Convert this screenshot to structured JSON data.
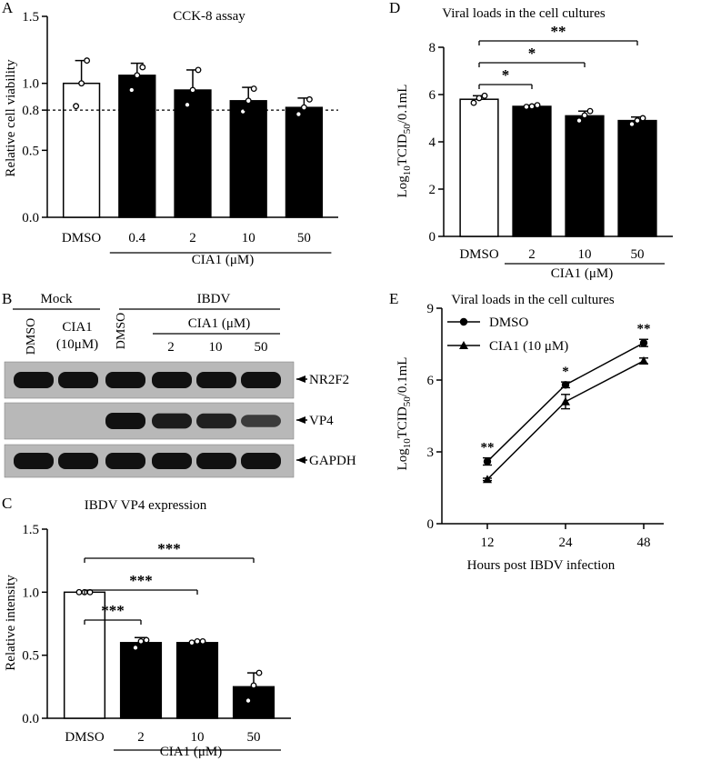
{
  "panels": {
    "A": {
      "letter": "A",
      "title": "CCK-8 assay",
      "ylabel": "Relative cell viability",
      "yticks": [
        "0.0",
        "0.5",
        "0.8",
        "1.0",
        "1.5"
      ],
      "ytick_values": [
        0.0,
        0.5,
        0.8,
        1.0,
        1.5
      ],
      "group_label": "CIA1 (μM)",
      "threshold": 0.8
    },
    "B": {
      "letter": "B",
      "mock_label": "Mock",
      "ibdv_label": "IBDV",
      "lane_dmso_1": "DMSO",
      "lane_dmso_2": "DMSO",
      "cia1_mock_line1": "CIA1",
      "cia1_mock_line2": "(10μM)",
      "cia1_ibdv": "CIA1 (μM)",
      "doses": [
        "2",
        "10",
        "50"
      ],
      "band_labels": [
        "NR2F2",
        "VP4",
        "GAPDH"
      ],
      "band_intensity": {
        "NR2F2": [
          1,
          1,
          1,
          1,
          1
        ],
        "VP4": [
          0,
          0,
          1,
          0.8,
          0.45
        ],
        "GAPDH": [
          1,
          1,
          1,
          1,
          1
        ]
      }
    },
    "C": {
      "letter": "C",
      "title": "IBDV VP4 expression",
      "ylabel": "Relative intensity",
      "yticks": [
        "0.0",
        "0.5",
        "1.0",
        "1.5"
      ],
      "ytick_values": [
        0.0,
        0.5,
        1.0,
        1.5
      ],
      "group_label": "CIA1 (μM)",
      "sig": [
        "***",
        "***",
        "***"
      ]
    },
    "D": {
      "letter": "D",
      "title": "Viral loads in the cell cultures",
      "ylabel_main": "Log",
      "ylabel_sub": "10",
      "ylabel_mid": "TCID",
      "ylabel_sub2": "50",
      "ylabel_tail": "/0.1mL",
      "yticks": [
        "0",
        "2",
        "4",
        "6",
        "8"
      ],
      "ytick_values": [
        0,
        2,
        4,
        6,
        8
      ],
      "group_label": "CIA1 (μM)",
      "sig": [
        "*",
        "*",
        "**"
      ]
    },
    "E": {
      "letter": "E",
      "title": "Viral loads in the cell cultures",
      "ylabel_main": "Log",
      "ylabel_sub": "10",
      "ylabel_mid": "TCID",
      "ylabel_sub2": "50",
      "ylabel_tail": "/0.1mL",
      "xlabel": "Hours post IBDV infection",
      "yticks": [
        "0",
        "3",
        "6",
        "9"
      ],
      "ytick_values": [
        0,
        3,
        6,
        9
      ],
      "xticks": [
        "12",
        "24",
        "48"
      ],
      "sig": [
        "**",
        "*",
        "**"
      ]
    }
  },
  "chart_data": [
    {
      "type": "bar",
      "title": "CCK-8 assay",
      "ylabel": "Relative cell viability",
      "xlabel": "CIA1 (μM)",
      "categories": [
        "DMSO",
        "0.4",
        "2",
        "10",
        "50"
      ],
      "values": [
        1.0,
        1.06,
        0.95,
        0.87,
        0.82
      ],
      "errors": [
        0.17,
        0.09,
        0.15,
        0.1,
        0.07
      ],
      "points": [
        [
          0.83,
          1.0,
          1.17
        ],
        [
          0.95,
          1.06,
          1.12
        ],
        [
          0.84,
          0.95,
          1.1
        ],
        [
          0.79,
          0.87,
          0.96
        ],
        [
          0.77,
          0.82,
          0.88
        ]
      ],
      "ylim": [
        0,
        1.5
      ],
      "reference_line": 0.8
    },
    {
      "type": "bar",
      "title": "IBDV VP4 expression",
      "ylabel": "Relative intensity",
      "xlabel": "CIA1 (μM)",
      "categories": [
        "DMSO",
        "2",
        "10",
        "50"
      ],
      "values": [
        1.0,
        0.6,
        0.6,
        0.25
      ],
      "errors": [
        0.005,
        0.04,
        0.01,
        0.11
      ],
      "points": [
        [
          1.0,
          1.0,
          1.0
        ],
        [
          0.56,
          0.61,
          0.62
        ],
        [
          0.6,
          0.61,
          0.61
        ],
        [
          0.14,
          0.26,
          0.36
        ]
      ],
      "ylim": [
        0,
        1.5
      ]
    },
    {
      "type": "bar",
      "title": "Viral loads in the cell cultures",
      "ylabel": "Log10TCID50/0.1mL",
      "xlabel": "CIA1 (μM)",
      "categories": [
        "DMSO",
        "2",
        "10",
        "50"
      ],
      "values": [
        5.8,
        5.5,
        5.1,
        4.9
      ],
      "errors": [
        0.15,
        0.05,
        0.2,
        0.15
      ],
      "points": [
        [
          5.65,
          5.85,
          5.95
        ],
        [
          5.48,
          5.5,
          5.55
        ],
        [
          4.9,
          5.12,
          5.3
        ],
        [
          4.75,
          4.9,
          5.0
        ]
      ],
      "ylim": [
        0,
        8
      ]
    },
    {
      "type": "line",
      "title": "Viral loads in the cell cultures",
      "xlabel": "Hours post IBDV infection",
      "ylabel": "Log10TCID50/0.1mL",
      "x": [
        "12",
        "24",
        "48"
      ],
      "ylim": [
        0,
        9
      ],
      "series": [
        {
          "name": "DMSO",
          "marker": "circle",
          "values": [
            2.6,
            5.8,
            7.55
          ],
          "errors": [
            0.15,
            0.12,
            0.15
          ]
        },
        {
          "name": "CIA1 (10 μM)",
          "marker": "triangle",
          "values": [
            1.85,
            5.1,
            6.8
          ],
          "errors": [
            0.05,
            0.3,
            0.12
          ]
        }
      ]
    }
  ]
}
